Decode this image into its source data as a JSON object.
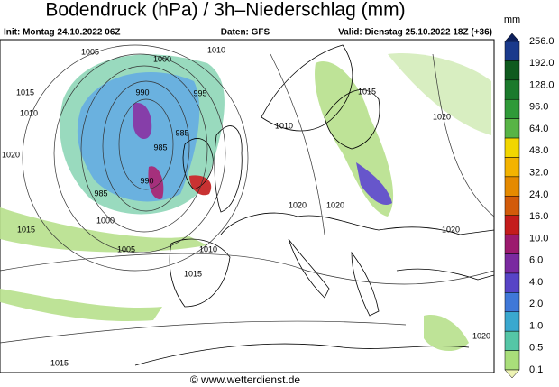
{
  "header": {
    "title": "Bodendruck (hPa) / 3h–Niederschlag (mm)",
    "init": "Init: Montag 24.10.2022 06Z",
    "source": "Daten: GFS",
    "valid": "Valid: Dienstag 25.10.2022 18Z (+36)"
  },
  "legend": {
    "unit": "mm",
    "labels": [
      "256.0",
      "192.0",
      "128.0",
      "96.0",
      "64.0",
      "48.0",
      "32.0",
      "24.0",
      "16.0",
      "10.0",
      "6.0",
      "4.0",
      "2.0",
      "1.0",
      "0.5",
      "0.1"
    ],
    "colors": [
      "#0c1f5c",
      "#1a3a8c",
      "#0f5a1e",
      "#1b7a2c",
      "#2f9a38",
      "#58b446",
      "#f2d600",
      "#f3b300",
      "#e58a00",
      "#d25b0a",
      "#c41c1c",
      "#9c1a6e",
      "#7a2aa0",
      "#5744c6",
      "#3f78d8",
      "#3aa8cf",
      "#55c6a6",
      "#a9de7a",
      "#eef4b4"
    ]
  },
  "isobars": {
    "labels": [
      "1005",
      "1000",
      "1010",
      "990",
      "995",
      "985",
      "985",
      "990",
      "985",
      "1015",
      "1010",
      "1020",
      "1005",
      "1000",
      "1010",
      "1015",
      "1015",
      "1010",
      "1020",
      "1020",
      "1020",
      "1020",
      "1015",
      "1015",
      "1020"
    ]
  },
  "footer": "© www.wetterdienst.de"
}
